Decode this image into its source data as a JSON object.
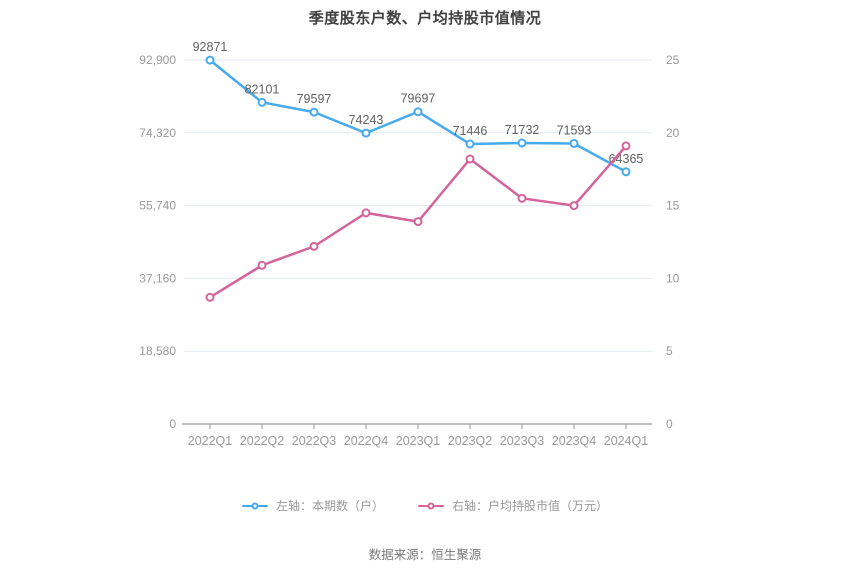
{
  "title": "季度股东户数、户均持股市值情况",
  "source": "数据来源：恒生聚源",
  "colors": {
    "series_blue": "#47aaee",
    "series_pink": "#d4639c",
    "grid_line": "#e4e9f2",
    "axis_line": "#999999",
    "axis_text": "#999999",
    "data_label_text": "#606060",
    "title_text": "#404040",
    "background": "#ffffff"
  },
  "chart_data": {
    "type": "line",
    "title": "季度股东户数、户均持股市值情况",
    "categories": [
      "2022Q1",
      "2022Q2",
      "2022Q3",
      "2022Q4",
      "2023Q1",
      "2023Q2",
      "2023Q3",
      "2023Q4",
      "2024Q1"
    ],
    "series": [
      {
        "name": "左轴：本期数（户）",
        "axis": "left",
        "color": "#47aaee",
        "values": [
          92871,
          82101,
          79597,
          74243,
          79697,
          71446,
          71732,
          71593,
          64365
        ],
        "data_labels": true
      },
      {
        "name": "右轴：户均持股市值（万元）",
        "axis": "right",
        "color": "#d4639c",
        "values": [
          8.7,
          10.9,
          12.2,
          14.5,
          13.9,
          18.2,
          15.5,
          15.0,
          19.1
        ],
        "data_labels": false
      }
    ],
    "left_axis": {
      "min": 0,
      "max": 92900,
      "ticks": [
        "0",
        "18,580",
        "37,160",
        "55,740",
        "74,320",
        "92,900"
      ]
    },
    "right_axis": {
      "min": 0,
      "max": 25,
      "ticks": [
        "0",
        "5",
        "10",
        "15",
        "20",
        "25"
      ]
    },
    "grid": true,
    "legend_position": "bottom",
    "xlabel": "",
    "ylabel": ""
  }
}
